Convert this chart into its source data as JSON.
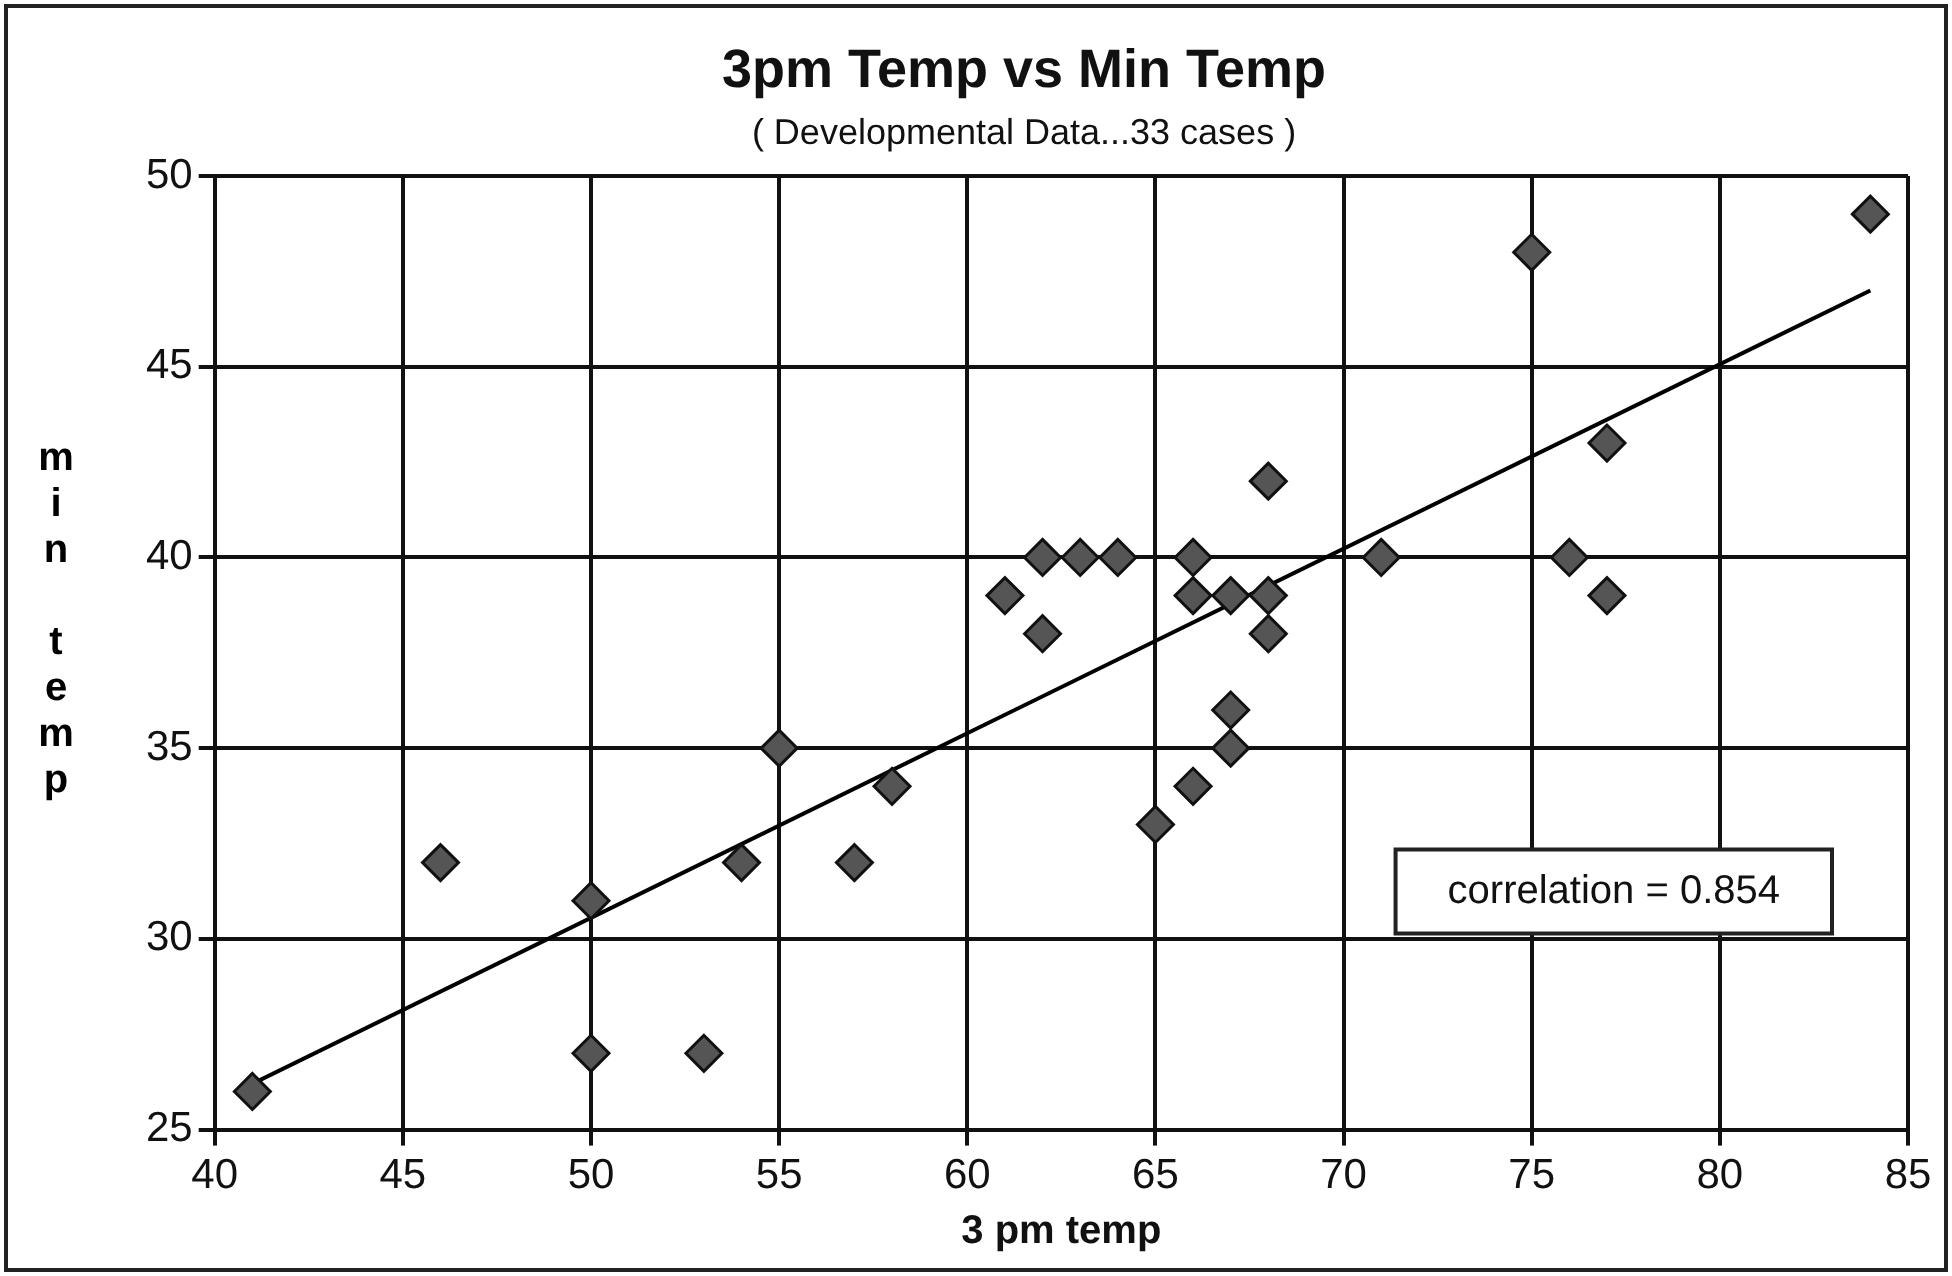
{
  "chart_data": {
    "type": "scatter",
    "title": "3pm Temp vs Min Temp",
    "subtitle": "( Developmental Data...33 cases )",
    "xlabel": "3 pm temp",
    "ylabel": "min temp",
    "xlim": [
      40,
      85
    ],
    "xticks": [
      40,
      45,
      50,
      55,
      60,
      65,
      70,
      75,
      80,
      85
    ],
    "ylim": [
      25,
      50
    ],
    "yticks": [
      25,
      30,
      35,
      40,
      45,
      50
    ],
    "grid": true,
    "marker": "diamond",
    "legend": false,
    "annotations": [
      "correlation = 0.854"
    ],
    "series": [
      {
        "color": "#555555",
        "x": [
          41,
          46,
          50,
          50,
          53,
          54,
          55,
          57,
          58,
          61,
          62,
          62,
          63,
          64,
          65,
          66,
          66,
          66,
          67,
          67,
          67,
          68,
          68,
          68,
          71,
          75,
          76,
          77,
          77,
          84
        ],
        "values": [
          26,
          32,
          31,
          27,
          27,
          32,
          35,
          32,
          34,
          39,
          38,
          40,
          40,
          40,
          33,
          34,
          40,
          39,
          39,
          36,
          35,
          39,
          38,
          42,
          40,
          48,
          40,
          43,
          39,
          49
        ]
      },
      {
        "type": "line",
        "color": "#000000",
        "marker": "none",
        "x": [
          41,
          84
        ],
        "values": [
          26.2,
          47
        ]
      }
    ]
  }
}
